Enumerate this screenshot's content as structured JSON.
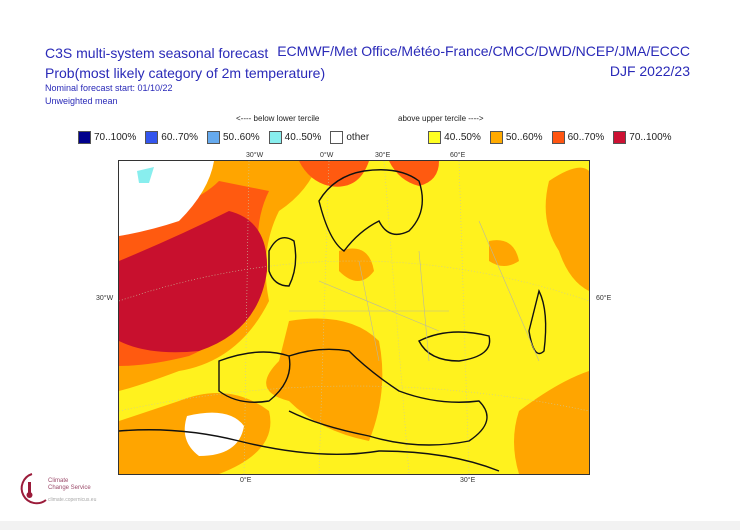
{
  "header": {
    "title_left_1": "C3S multi-system seasonal forecast",
    "title_left_2": "Prob(most likely category of 2m temperature)",
    "forecast_start": "Nominal forecast start: 01/10/22",
    "weighting": "Unweighted mean",
    "centres": "ECMWF/Met Office/Météo-France/CMCC/DWD/NCEP/JMA/ECCC",
    "season": "DJF 2022/23"
  },
  "legend": {
    "below_label": "<---- below lower tercile",
    "above_label": "above upper tercile ---->",
    "items": [
      {
        "label": "70..100%",
        "color": "#00008c"
      },
      {
        "label": "60..70%",
        "color": "#3355ee"
      },
      {
        "label": "50..60%",
        "color": "#66aaee"
      },
      {
        "label": "40..50%",
        "color": "#88eeee"
      },
      {
        "label": "other",
        "color": "#ffffff"
      },
      {
        "label": "40..50%",
        "color": "#ffff22"
      },
      {
        "label": "50..60%",
        "color": "#ffaa00"
      },
      {
        "label": "60..70%",
        "color": "#ff5511"
      },
      {
        "label": "70..100%",
        "color": "#cc1133"
      }
    ]
  },
  "map": {
    "grid_labels": {
      "top": [
        "30°W",
        "0°W",
        "30°E",
        "60°E"
      ],
      "left": "30°W",
      "right": "60°E",
      "bottom": [
        "0°E",
        "30°E"
      ]
    }
  },
  "logo": {
    "line1": "Climate",
    "line2": "Change Service",
    "url": "climate.copernicus.eu"
  }
}
